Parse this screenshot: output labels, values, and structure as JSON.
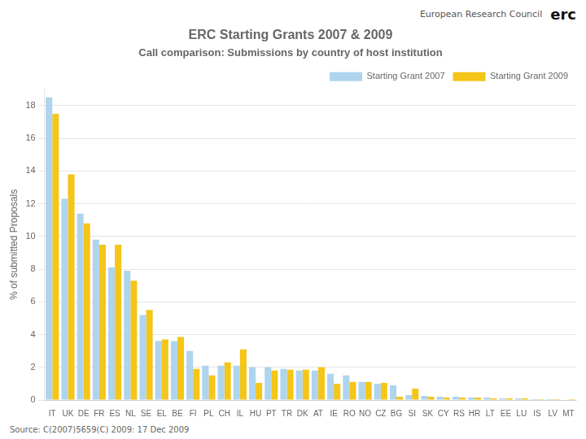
{
  "chart_data": {
    "type": "bar",
    "title": "ERC Starting Grants 2007 & 2009",
    "subtitle": "Call comparison: Submissions by country of host institution",
    "annotations": [
      "European Research Council",
      "erc",
      "Source: C(2007)5659(C) 2009: 17 Dec 2009"
    ],
    "ylabel": "% of submitted Proposals",
    "categories": [
      "IT",
      "UK",
      "DE",
      "FR",
      "ES",
      "NL",
      "SE",
      "EL",
      "BE",
      "FI",
      "PL",
      "CH",
      "IL",
      "HU",
      "PT",
      "TR",
      "DK",
      "AT",
      "IE",
      "RO",
      "NO",
      "CZ",
      "BG",
      "SI",
      "SK",
      "CY",
      "RS",
      "HR",
      "LT",
      "EE",
      "LU",
      "IS",
      "LV",
      "MT"
    ],
    "series": [
      {
        "name": "Starting Grant 2007",
        "color": "#aed4ee",
        "values": [
          18.5,
          12.3,
          11.4,
          9.8,
          8.1,
          7.9,
          5.2,
          3.6,
          3.6,
          3.0,
          2.1,
          2.1,
          2.1,
          2.0,
          2.0,
          1.9,
          1.8,
          1.8,
          1.6,
          1.5,
          1.1,
          1.0,
          0.9,
          0.3,
          0.25,
          0.2,
          0.2,
          0.15,
          0.15,
          0.1,
          0.1,
          0.05,
          0.05,
          0.0
        ]
      },
      {
        "name": "Starting Grant 2009",
        "color": "#f5c518",
        "values": [
          17.5,
          13.8,
          10.8,
          9.5,
          9.5,
          7.3,
          5.5,
          3.7,
          3.85,
          1.9,
          1.5,
          2.3,
          3.1,
          1.05,
          1.8,
          1.85,
          1.85,
          2.0,
          1.0,
          1.1,
          1.1,
          1.05,
          0.2,
          0.7,
          0.2,
          0.15,
          0.15,
          0.15,
          0.1,
          0.1,
          0.1,
          0.05,
          0.05,
          0.05
        ]
      }
    ],
    "ylim": [
      0,
      19
    ],
    "yticks": [
      0,
      2,
      4,
      6,
      8,
      10,
      12,
      14,
      16,
      18
    ],
    "grid": true,
    "legend": "upper right"
  }
}
